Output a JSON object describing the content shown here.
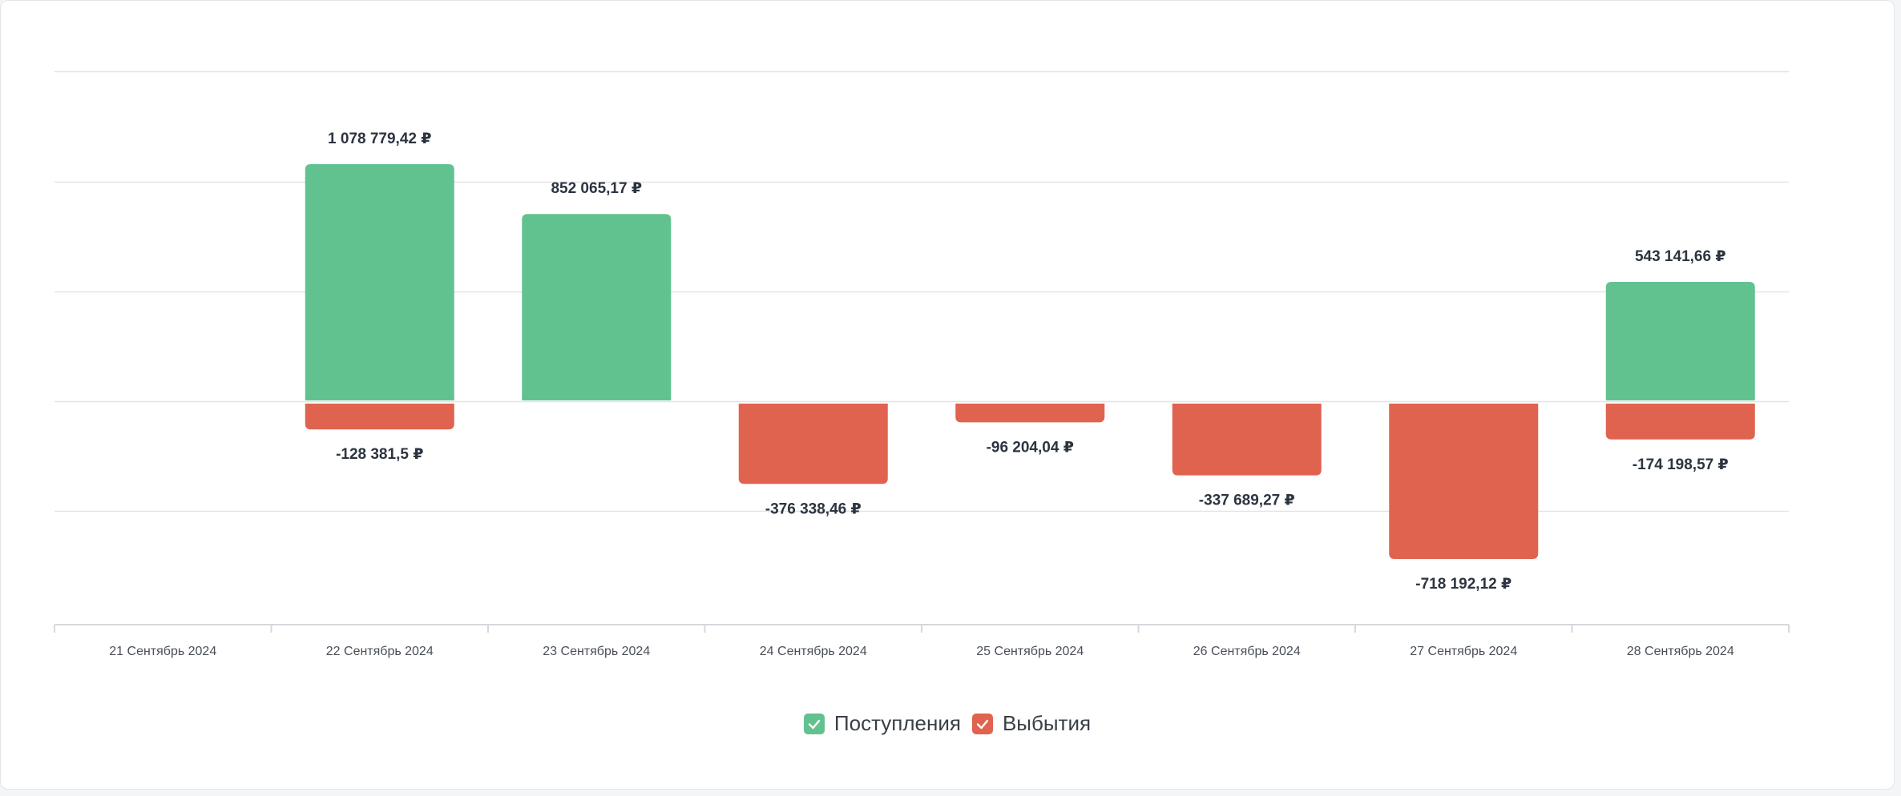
{
  "chart_data": {
    "type": "bar",
    "categories": [
      "21 Сентябрь 2024",
      "22 Сентябрь 2024",
      "23 Сентябрь 2024",
      "24 Сентябрь 2024",
      "25 Сентябрь 2024",
      "26 Сентябрь 2024",
      "27 Сентябрь 2024",
      "28 Сентябрь 2024"
    ],
    "series": [
      {
        "name": "Поступления",
        "color": "#62c28f",
        "values": [
          null,
          1078779.42,
          852065.17,
          null,
          null,
          null,
          null,
          543141.66
        ],
        "labels": [
          "",
          "1 078 779,42 ₽",
          "852 065,17 ₽",
          "",
          "",
          "",
          "",
          "543 141,66 ₽"
        ]
      },
      {
        "name": "Выбытия",
        "color": "#e0634f",
        "values": [
          null,
          -128381.5,
          null,
          -376338.46,
          -96204.04,
          -337689.27,
          -718192.12,
          -174198.57
        ],
        "labels": [
          "",
          "-128 381,5 ₽",
          "",
          "-376 338,46 ₽",
          "-96 204,04 ₽",
          "-337 689,27 ₽",
          "-718 192,12 ₽",
          "-174 198,57 ₽"
        ]
      }
    ],
    "stacked": true,
    "ylim": [
      -1000000,
      1500000
    ],
    "grid": true,
    "legend_position": "bottom-center"
  }
}
